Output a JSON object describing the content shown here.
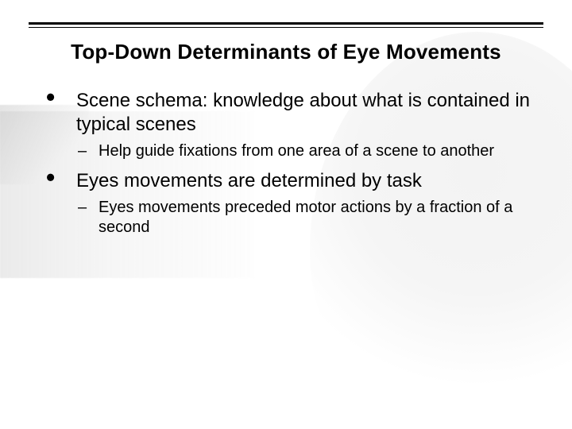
{
  "slide": {
    "title": "Top-Down Determinants of Eye Movements",
    "rule_color": "#000000",
    "title_fontsize": 26,
    "title_fontweight": 700,
    "body_font_color": "#000000",
    "background_color": "#ffffff",
    "bg_head_color": "#e9e9e9",
    "bg_photo_gradient_from": "#b4b4b4",
    "bg_photo_gradient_to": "#e6e6e6",
    "bullets": [
      {
        "text": "Scene schema: knowledge about what is contained in typical scenes",
        "fontsize": 24,
        "sub": [
          {
            "text": "Help guide fixations from one area of a scene to another",
            "fontsize": 20
          }
        ]
      },
      {
        "text": "Eyes movements are determined by task",
        "fontsize": 24,
        "sub": [
          {
            "text": "Eyes movements preceded motor actions by a fraction of a second",
            "fontsize": 20
          }
        ]
      }
    ]
  }
}
